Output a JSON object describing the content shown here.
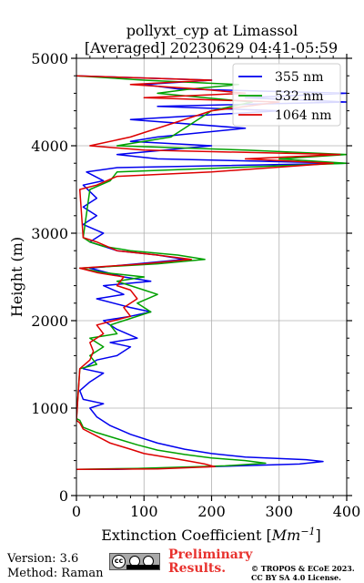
{
  "chart_data": {
    "type": "line",
    "title_line1": "pollyxt_cyp at Limassol",
    "title_line2": "[Averaged] 20230629 04:41-05:59",
    "xlabel": "Extinction Coefficient [",
    "xlabel_unit": "Mm",
    "xlabel_exp": "−1",
    "xlabel_close": "]",
    "ylabel": "Height (m)",
    "xlim": [
      0,
      400
    ],
    "ylim": [
      0,
      5000
    ],
    "x_ticks": [
      0,
      100,
      200,
      300,
      400
    ],
    "x_tick_labels": [
      "0",
      "100",
      "200",
      "300",
      "400"
    ],
    "y_ticks": [
      0,
      1000,
      2000,
      3000,
      4000,
      5000
    ],
    "y_tick_labels": [
      "0",
      "1000",
      "2000",
      "3000",
      "4000",
      "5000"
    ],
    "grid": true,
    "legend_position": "top-right",
    "series": [
      {
        "name": "355 nm",
        "color": "#0000ee",
        "points": [
          [
            0,
            300
          ],
          [
            60,
            300
          ],
          [
            200,
            330
          ],
          [
            330,
            360
          ],
          [
            365,
            390
          ],
          [
            340,
            410
          ],
          [
            250,
            440
          ],
          [
            200,
            480
          ],
          [
            160,
            530
          ],
          [
            120,
            600
          ],
          [
            80,
            700
          ],
          [
            50,
            800
          ],
          [
            30,
            900
          ],
          [
            20,
            1000
          ],
          [
            40,
            1050
          ],
          [
            10,
            1100
          ],
          [
            5,
            1200
          ],
          [
            20,
            1300
          ],
          [
            40,
            1400
          ],
          [
            10,
            1450
          ],
          [
            30,
            1550
          ],
          [
            60,
            1600
          ],
          [
            80,
            1700
          ],
          [
            50,
            1750
          ],
          [
            90,
            1800
          ],
          [
            60,
            1900
          ],
          [
            40,
            2000
          ],
          [
            80,
            2050
          ],
          [
            110,
            2100
          ],
          [
            80,
            2150
          ],
          [
            30,
            2250
          ],
          [
            70,
            2300
          ],
          [
            40,
            2400
          ],
          [
            110,
            2450
          ],
          [
            70,
            2500
          ],
          [
            20,
            2600
          ],
          [
            90,
            2650
          ],
          [
            160,
            2700
          ],
          [
            120,
            2750
          ],
          [
            60,
            2800
          ],
          [
            20,
            2900
          ],
          [
            40,
            3000
          ],
          [
            10,
            3100
          ],
          [
            30,
            3200
          ],
          [
            10,
            3300
          ],
          [
            30,
            3400
          ],
          [
            10,
            3550
          ],
          [
            40,
            3600
          ],
          [
            15,
            3700
          ],
          [
            60,
            3750
          ],
          [
            400,
            3800
          ],
          [
            120,
            3850
          ],
          [
            60,
            3900
          ],
          [
            200,
            4000
          ],
          [
            80,
            4050
          ],
          [
            120,
            4100
          ],
          [
            250,
            4200
          ],
          [
            80,
            4300
          ],
          [
            300,
            4400
          ],
          [
            120,
            4450
          ],
          [
            400,
            4500
          ],
          [
            250,
            4550
          ],
          [
            400,
            4600
          ],
          [
            150,
            4650
          ],
          [
            100,
            4700
          ],
          [
            200,
            4750
          ],
          [
            0,
            4800
          ]
        ]
      },
      {
        "name": "532 nm",
        "color": "#00a000",
        "points": [
          [
            0,
            300
          ],
          [
            90,
            310
          ],
          [
            220,
            340
          ],
          [
            280,
            370
          ],
          [
            250,
            400
          ],
          [
            200,
            430
          ],
          [
            160,
            470
          ],
          [
            120,
            520
          ],
          [
            90,
            580
          ],
          [
            60,
            650
          ],
          [
            30,
            720
          ],
          [
            10,
            780
          ],
          [
            5,
            860
          ],
          [
            0,
            880
          ],
          [
            5,
            1450
          ],
          [
            30,
            1500
          ],
          [
            20,
            1600
          ],
          [
            40,
            1700
          ],
          [
            20,
            1800
          ],
          [
            60,
            1850
          ],
          [
            50,
            1950
          ],
          [
            70,
            2000
          ],
          [
            110,
            2100
          ],
          [
            90,
            2200
          ],
          [
            120,
            2300
          ],
          [
            100,
            2350
          ],
          [
            80,
            2400
          ],
          [
            60,
            2450
          ],
          [
            100,
            2500
          ],
          [
            40,
            2550
          ],
          [
            5,
            2600
          ],
          [
            120,
            2650
          ],
          [
            190,
            2700
          ],
          [
            150,
            2750
          ],
          [
            80,
            2800
          ],
          [
            40,
            2850
          ],
          [
            20,
            2900
          ],
          [
            10,
            2950
          ],
          [
            20,
            3500
          ],
          [
            50,
            3600
          ],
          [
            60,
            3700
          ],
          [
            400,
            3800
          ],
          [
            300,
            3850
          ],
          [
            400,
            3900
          ],
          [
            250,
            3950
          ],
          [
            60,
            4000
          ],
          [
            140,
            4100
          ],
          [
            200,
            4400
          ],
          [
            260,
            4500
          ],
          [
            120,
            4600
          ],
          [
            170,
            4650
          ],
          [
            240,
            4700
          ],
          [
            100,
            4750
          ],
          [
            0,
            4800
          ]
        ]
      },
      {
        "name": "1064 nm",
        "color": "#dd0000",
        "points": [
          [
            0,
            300
          ],
          [
            120,
            305
          ],
          [
            205,
            330
          ],
          [
            190,
            360
          ],
          [
            170,
            390
          ],
          [
            140,
            430
          ],
          [
            100,
            480
          ],
          [
            80,
            530
          ],
          [
            50,
            600
          ],
          [
            30,
            680
          ],
          [
            10,
            760
          ],
          [
            5,
            830
          ],
          [
            0,
            860
          ],
          [
            5,
            1450
          ],
          [
            20,
            1550
          ],
          [
            25,
            1650
          ],
          [
            20,
            1750
          ],
          [
            40,
            1850
          ],
          [
            30,
            1950
          ],
          [
            55,
            2000
          ],
          [
            80,
            2050
          ],
          [
            70,
            2150
          ],
          [
            90,
            2250
          ],
          [
            80,
            2350
          ],
          [
            60,
            2400
          ],
          [
            70,
            2500
          ],
          [
            30,
            2550
          ],
          [
            5,
            2600
          ],
          [
            100,
            2650
          ],
          [
            170,
            2700
          ],
          [
            120,
            2750
          ],
          [
            60,
            2800
          ],
          [
            30,
            2900
          ],
          [
            10,
            2950
          ],
          [
            5,
            3500
          ],
          [
            30,
            3550
          ],
          [
            60,
            3650
          ],
          [
            200,
            3700
          ],
          [
            380,
            3800
          ],
          [
            250,
            3850
          ],
          [
            390,
            3900
          ],
          [
            100,
            3950
          ],
          [
            20,
            4000
          ],
          [
            80,
            4100
          ],
          [
            200,
            4400
          ],
          [
            300,
            4500
          ],
          [
            100,
            4550
          ],
          [
            250,
            4600
          ],
          [
            180,
            4650
          ],
          [
            80,
            4700
          ],
          [
            200,
            4750
          ],
          [
            0,
            4800
          ]
        ]
      }
    ]
  },
  "footer": {
    "version": "Version: 3.6",
    "method": "Method: Raman",
    "license_badge": "cc-by-sa-badge",
    "preliminary_line1": "Preliminary",
    "preliminary_line2": "Results.",
    "copyright_line1": "© TROPOS & ECoE 2023.",
    "copyright_line2": "CC BY SA 4.0 License."
  }
}
